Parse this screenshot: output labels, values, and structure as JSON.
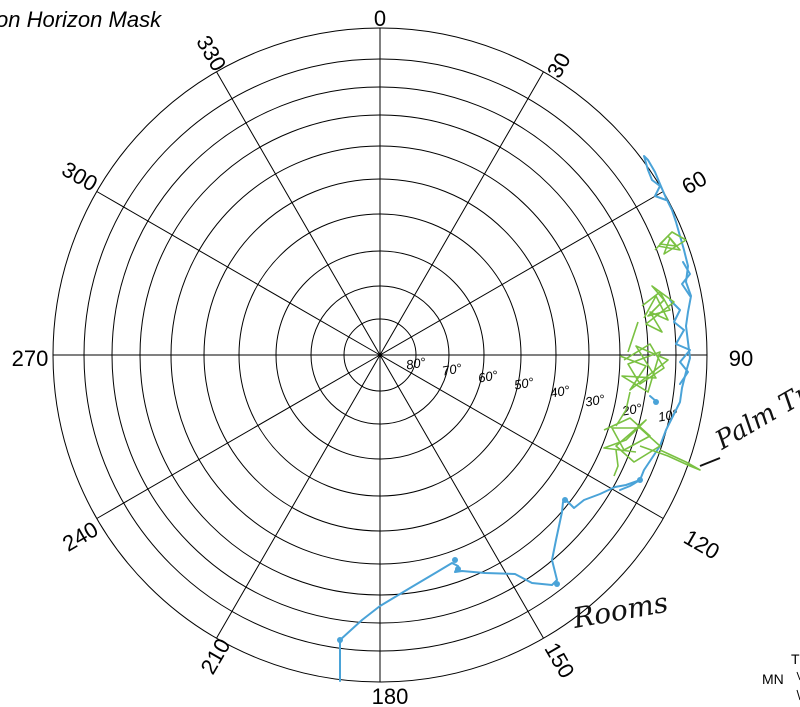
{
  "title": "on Horizon Mask",
  "azimuth_labels": [
    "0",
    "30",
    "60",
    "90",
    "120",
    "150",
    "180",
    "210",
    "240",
    "270",
    "300",
    "330"
  ],
  "altitude_labels": [
    "80°",
    "70°",
    "60°",
    "50°",
    "40°",
    "30°",
    "20°",
    "10°"
  ],
  "annotations": {
    "trees": "Palm Trees",
    "rooms": "Rooms",
    "compass_mn": "MN",
    "compass_t": "T"
  },
  "colors": {
    "grid": "#000000",
    "horizon_line": "#4aa3d8",
    "tree_scribble": "#7ac142"
  }
}
